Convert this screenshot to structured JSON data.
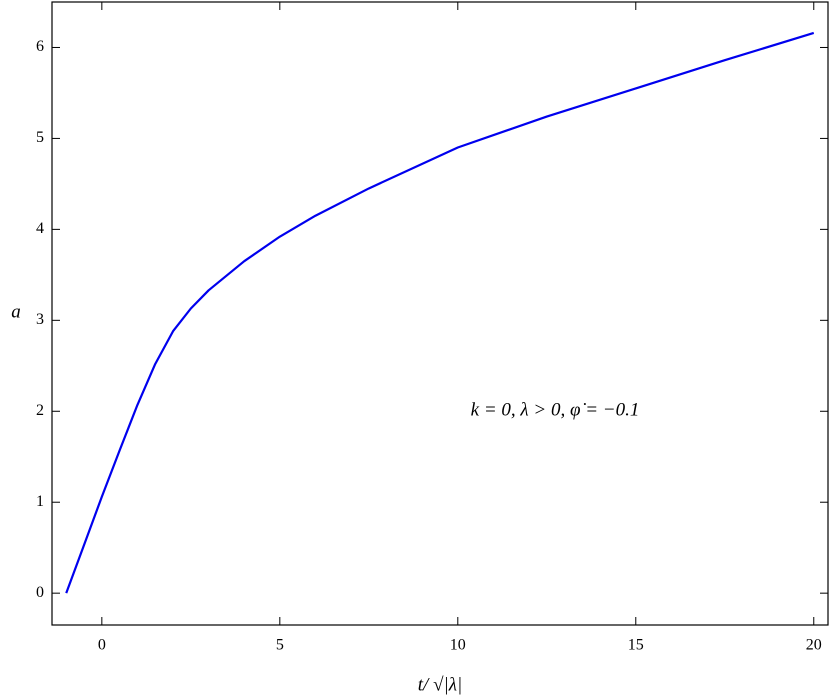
{
  "chart_data": {
    "type": "line",
    "xlabel": "t/ √|λ|",
    "ylabel": "a",
    "annotation": "k = 0,    λ > 0,    φ̇ = −0.1",
    "x": [
      -1,
      -0.5,
      0,
      0.5,
      1,
      1.5,
      2,
      2.5,
      3,
      4,
      5,
      6,
      7.5,
      10,
      12.5,
      15,
      17.5,
      20
    ],
    "series": [
      {
        "name": "a",
        "color": "#0000ee",
        "values": [
          0,
          0.53,
          1.06,
          1.57,
          2.07,
          2.52,
          2.88,
          3.13,
          3.33,
          3.65,
          3.92,
          4.15,
          4.45,
          4.9,
          5.24,
          5.55,
          5.86,
          6.16
        ]
      }
    ],
    "xlim": [
      -1.4,
      20.4
    ],
    "xticks": [
      0,
      5,
      10,
      15,
      20
    ],
    "ylim": [
      -0.35,
      6.5
    ],
    "yticks": [
      0,
      1,
      2,
      3,
      4,
      5,
      6
    ],
    "grid": false
  }
}
